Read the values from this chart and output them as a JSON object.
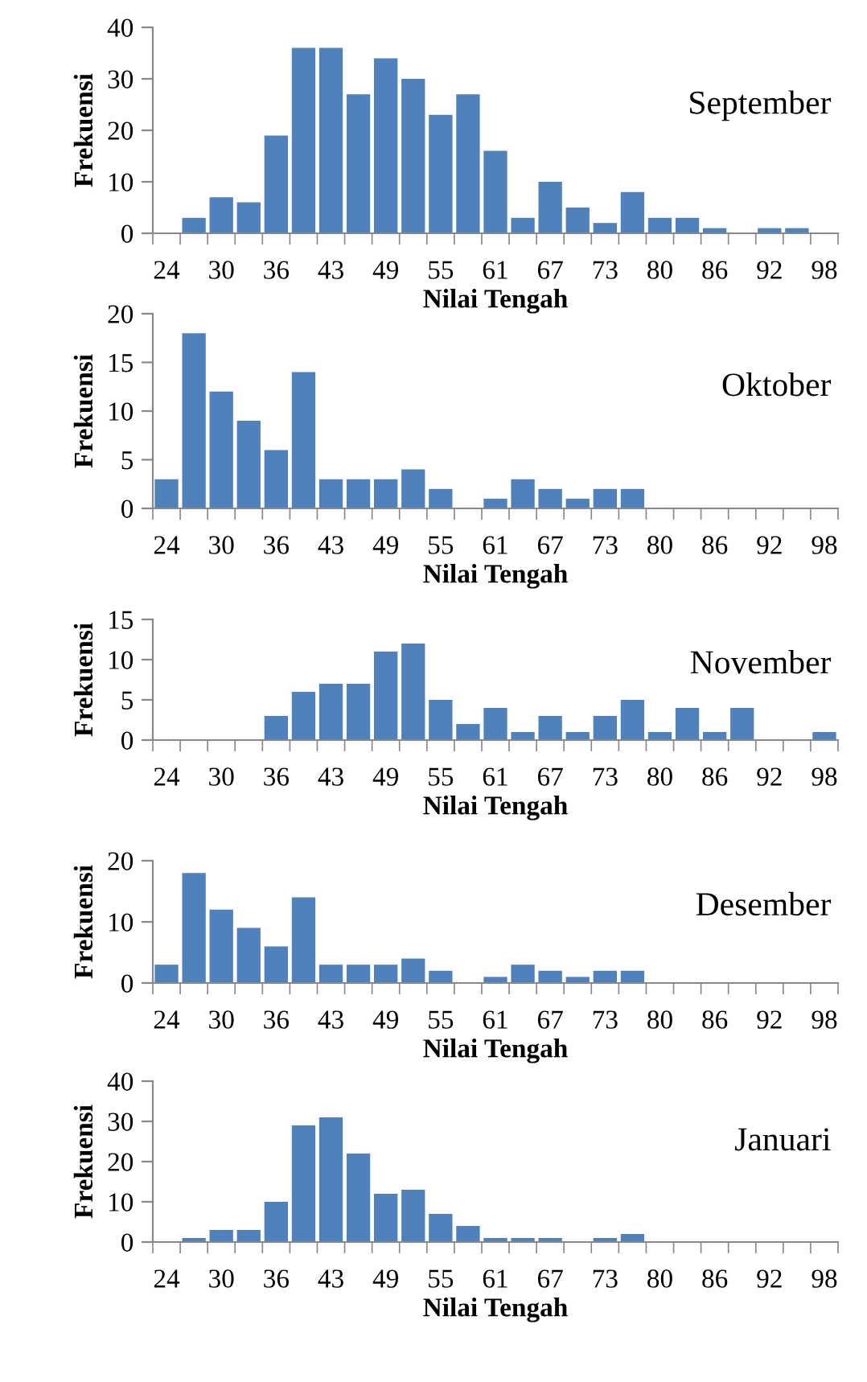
{
  "chart_data": [
    {
      "type": "bar",
      "xlabel": "Nilai Tengah",
      "ylabel": "Frekuensi",
      "annotations": [
        "September"
      ],
      "color": "#4f81bd",
      "categories": [
        "24",
        null,
        "30",
        null,
        "36",
        null,
        "43",
        null,
        "49",
        null,
        "55",
        null,
        "61",
        null,
        "67",
        null,
        "73",
        null,
        "80",
        null,
        "86",
        null,
        "92",
        null,
        "98"
      ],
      "values": [
        0,
        3,
        7,
        6,
        19,
        36,
        36,
        27,
        34,
        30,
        23,
        27,
        16,
        3,
        10,
        5,
        2,
        8,
        3,
        3,
        1,
        0,
        1,
        1,
        0
      ],
      "ylim": [
        0,
        40
      ],
      "yticks": [
        0,
        10,
        20,
        30,
        40
      ],
      "grid": false,
      "legend": false
    },
    {
      "type": "bar",
      "xlabel": "Nilai Tengah",
      "ylabel": "Frekuensi",
      "annotations": [
        "Oktober"
      ],
      "color": "#4f81bd",
      "categories": [
        "24",
        null,
        "30",
        null,
        "36",
        null,
        "43",
        null,
        "49",
        null,
        "55",
        null,
        "61",
        null,
        "67",
        null,
        "73",
        null,
        "80",
        null,
        "86",
        null,
        "92",
        null,
        "98"
      ],
      "values": [
        3,
        18,
        12,
        9,
        6,
        14,
        3,
        3,
        3,
        4,
        2,
        0,
        1,
        3,
        2,
        1,
        2,
        2,
        0,
        0,
        0,
        0,
        0,
        0,
        0
      ],
      "ylim": [
        0,
        20
      ],
      "yticks": [
        0,
        5,
        10,
        15,
        20
      ],
      "grid": false,
      "legend": false
    },
    {
      "type": "bar",
      "xlabel": "Nilai Tengah",
      "ylabel": "Frekuensi",
      "annotations": [
        "November"
      ],
      "color": "#4f81bd",
      "categories": [
        "24",
        null,
        "30",
        null,
        "36",
        null,
        "43",
        null,
        "49",
        null,
        "55",
        null,
        "61",
        null,
        "67",
        null,
        "73",
        null,
        "80",
        null,
        "86",
        null,
        "92",
        null,
        "98"
      ],
      "values": [
        0,
        0,
        0,
        0,
        3,
        6,
        7,
        7,
        11,
        12,
        5,
        2,
        4,
        1,
        3,
        1,
        3,
        5,
        1,
        4,
        1,
        4,
        0,
        0,
        1
      ],
      "ylim": [
        0,
        15
      ],
      "yticks": [
        0,
        5,
        10,
        15
      ],
      "grid": false,
      "legend": false
    },
    {
      "type": "bar",
      "xlabel": "Nilai Tengah",
      "ylabel": "Frekuensi",
      "annotations": [
        "Desember"
      ],
      "color": "#4f81bd",
      "categories": [
        "24",
        null,
        "30",
        null,
        "36",
        null,
        "43",
        null,
        "49",
        null,
        "55",
        null,
        "61",
        null,
        "67",
        null,
        "73",
        null,
        "80",
        null,
        "86",
        null,
        "92",
        null,
        "98"
      ],
      "values": [
        3,
        18,
        12,
        9,
        6,
        14,
        3,
        3,
        3,
        4,
        2,
        0,
        1,
        3,
        2,
        1,
        2,
        2,
        0,
        0,
        0,
        0,
        0,
        0,
        0
      ],
      "ylim": [
        0,
        20
      ],
      "yticks": [
        0,
        10,
        20
      ],
      "grid": false,
      "legend": false
    },
    {
      "type": "bar",
      "xlabel": "Nilai Tengah",
      "ylabel": "Frekuensi",
      "annotations": [
        "Januari"
      ],
      "color": "#4f81bd",
      "categories": [
        "24",
        null,
        "30",
        null,
        "36",
        null,
        "43",
        null,
        "49",
        null,
        "55",
        null,
        "61",
        null,
        "67",
        null,
        "73",
        null,
        "80",
        null,
        "86",
        null,
        "92",
        null,
        "98"
      ],
      "values": [
        0,
        1,
        3,
        3,
        10,
        29,
        31,
        22,
        12,
        13,
        7,
        4,
        1,
        1,
        1,
        0,
        1,
        2,
        0,
        0,
        0,
        0,
        0,
        0,
        0
      ],
      "ylim": [
        0,
        40
      ],
      "yticks": [
        0,
        10,
        20,
        30,
        40
      ],
      "grid": false,
      "legend": false
    }
  ]
}
